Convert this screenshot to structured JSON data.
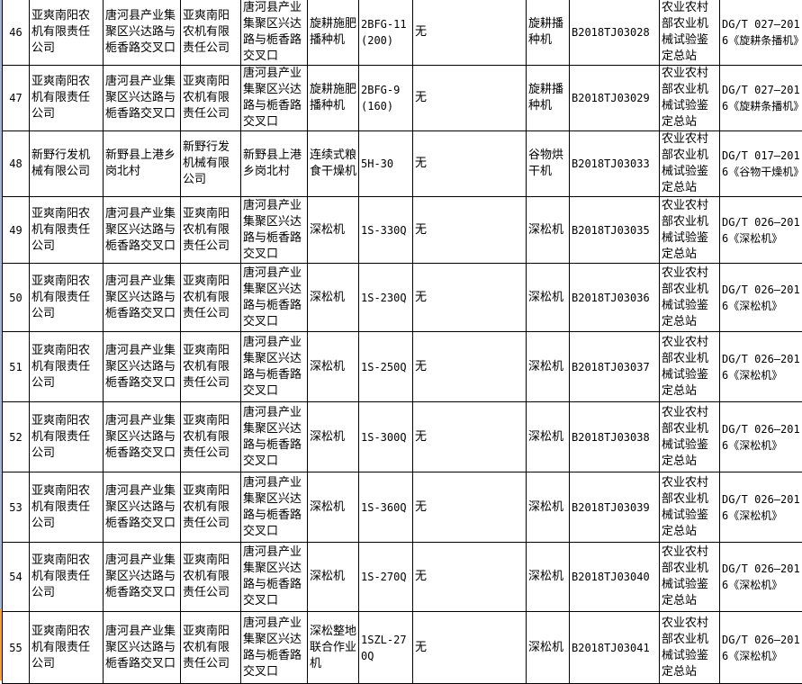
{
  "rows": [
    {
      "no": "46",
      "company": "亚爽南阳农机有限责任公司",
      "address": "唐河县产业集聚区兴达路与栀香路交叉口",
      "maker": "亚爽南阳农机有限责任公司",
      "maker_address": "唐河县产业集聚区兴达路与栀香路交叉口",
      "product": "旋耕施肥播种机",
      "model": "2BFG-11(200)",
      "note": "无",
      "blank": "",
      "category": "旋耕播种机",
      "cert": "B2018TJ03028",
      "org": "农业农村部农业机械试验鉴定总站",
      "standard": "DG/T 027—2016《旋耕条播机》"
    },
    {
      "no": "47",
      "company": "亚爽南阳农机有限责任公司",
      "address": "唐河县产业集聚区兴达路与栀香路交叉口",
      "maker": "亚爽南阳农机有限责任公司",
      "maker_address": "唐河县产业集聚区兴达路与栀香路交叉口",
      "product": "旋耕施肥播种机",
      "model": "2BFG-9(160)",
      "note": "无",
      "blank": "",
      "category": "旋耕播种机",
      "cert": "B2018TJ03029",
      "org": "农业农村部农业机械试验鉴定总站",
      "standard": "DG/T 027—2016《旋耕条播机》"
    },
    {
      "no": "48",
      "company": "新野行发机械有限公司",
      "address": "新野县上港乡岗北村",
      "maker": "新野行发机械有限公司",
      "maker_address": "新野县上港乡岗北村",
      "product": "连续式粮食干燥机",
      "model": "5H-30",
      "note": "无",
      "blank": "",
      "category": "谷物烘干机",
      "cert": "B2018TJ03033",
      "org": "农业农村部农业机械试验鉴定总站",
      "standard": "DG/T 017—2016《谷物干燥机》"
    },
    {
      "no": "49",
      "company": "亚爽南阳农机有限责任公司",
      "address": "唐河县产业集聚区兴达路与栀香路交叉口",
      "maker": "亚爽南阳农机有限责任公司",
      "maker_address": "唐河县产业集聚区兴达路与栀香路交叉口",
      "product": "深松机",
      "model": "1S-330Q",
      "note": "无",
      "blank": "",
      "category": "深松机",
      "cert": "B2018TJ03035",
      "org": "农业农村部农业机械试验鉴定总站",
      "standard": "DG/T 026—2016《深松机》"
    },
    {
      "no": "50",
      "company": "亚爽南阳农机有限责任公司",
      "address": "唐河县产业集聚区兴达路与栀香路交叉口",
      "maker": "亚爽南阳农机有限责任公司",
      "maker_address": "唐河县产业集聚区兴达路与栀香路交叉口",
      "product": "深松机",
      "model": "1S-230Q",
      "note": "无",
      "blank": "",
      "category": "深松机",
      "cert": "B2018TJ03036",
      "org": "农业农村部农业机械试验鉴定总站",
      "standard": "DG/T 026—2016《深松机》"
    },
    {
      "no": "51",
      "company": "亚爽南阳农机有限责任公司",
      "address": "唐河县产业集聚区兴达路与栀香路交叉口",
      "maker": "亚爽南阳农机有限责任公司",
      "maker_address": "唐河县产业集聚区兴达路与栀香路交叉口",
      "product": "深松机",
      "model": "1S-250Q",
      "note": "无",
      "blank": "",
      "category": "深松机",
      "cert": "B2018TJ03037",
      "org": "农业农村部农业机械试验鉴定总站",
      "standard": "DG/T 026—2016《深松机》"
    },
    {
      "no": "52",
      "company": "亚爽南阳农机有限责任公司",
      "address": "唐河县产业集聚区兴达路与栀香路交叉口",
      "maker": "亚爽南阳农机有限责任公司",
      "maker_address": "唐河县产业集聚区兴达路与栀香路交叉口",
      "product": "深松机",
      "model": "1S-300Q",
      "note": "无",
      "blank": "",
      "category": "深松机",
      "cert": "B2018TJ03038",
      "org": "农业农村部农业机械试验鉴定总站",
      "standard": "DG/T 026—2016《深松机》"
    },
    {
      "no": "53",
      "company": "亚爽南阳农机有限责任公司",
      "address": "唐河县产业集聚区兴达路与栀香路交叉口",
      "maker": "亚爽南阳农机有限责任公司",
      "maker_address": "唐河县产业集聚区兴达路与栀香路交叉口",
      "product": "深松机",
      "model": "1S-360Q",
      "note": "无",
      "blank": "",
      "category": "深松机",
      "cert": "B2018TJ03039",
      "org": "农业农村部农业机械试验鉴定总站",
      "standard": "DG/T 026—2016《深松机》"
    },
    {
      "no": "54",
      "company": "亚爽南阳农机有限责任公司",
      "address": "唐河县产业集聚区兴达路与栀香路交叉口",
      "maker": "亚爽南阳农机有限责任公司",
      "maker_address": "唐河县产业集聚区兴达路与栀香路交叉口",
      "product": "深松机",
      "model": "1S-270Q",
      "note": "无",
      "blank": "",
      "category": "深松机",
      "cert": "B2018TJ03040",
      "org": "农业农村部农业机械试验鉴定总站",
      "standard": "DG/T 026—2016《深松机》"
    },
    {
      "no": "55",
      "company": "亚爽南阳农机有限责任公司",
      "address": "唐河县产业集聚区兴达路与栀香路交叉口",
      "maker": "亚爽南阳农机有限责任公司",
      "maker_address": "唐河县产业集聚区兴达路与栀香路交叉口",
      "product": "深松整地联合作业机",
      "model": "1SZL-270Q",
      "note": "无",
      "blank": "",
      "category": "深松机",
      "cert": "B2018TJ03041",
      "org": "农业农村部农业机械试验鉴定总站",
      "standard": "DG/T 026—2016《深松机》"
    }
  ]
}
